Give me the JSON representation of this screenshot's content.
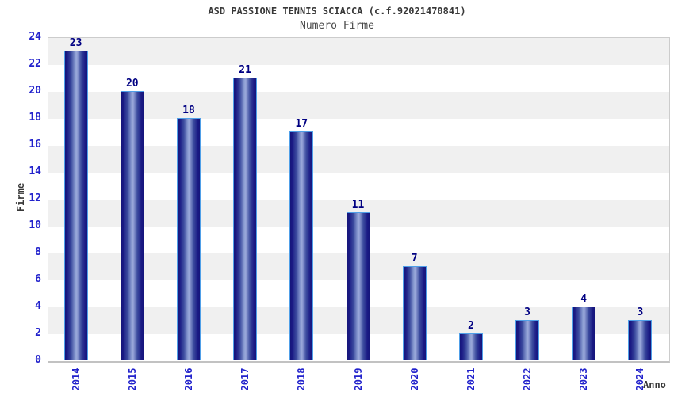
{
  "chart_data": {
    "type": "bar",
    "title": "ASD PASSIONE TENNIS SCIACCA (c.f.92021470841)",
    "subtitle": "Numero Firme",
    "xlabel": "Anno",
    "ylabel": "Firme",
    "categories": [
      "2014",
      "2015",
      "2016",
      "2017",
      "2018",
      "2019",
      "2020",
      "2021",
      "2022",
      "2023",
      "2024"
    ],
    "values": [
      23,
      20,
      18,
      21,
      17,
      11,
      7,
      2,
      3,
      4,
      3
    ],
    "ylim": [
      0,
      24
    ],
    "ytick_step": 2,
    "grid": "alternating-horizontal-bands",
    "legend": "none",
    "colors": {
      "bar_gradient_edge": "#15157b",
      "bar_gradient_center": "#96a4d8",
      "bar_border": "#4f9fe8",
      "axis_tick_label": "#2222cc",
      "bar_value_label": "#000082",
      "band_gray": "#f0f0f0",
      "band_white": "#ffffff",
      "plot_border": "#cccccc",
      "heading_text": "#383838"
    }
  }
}
